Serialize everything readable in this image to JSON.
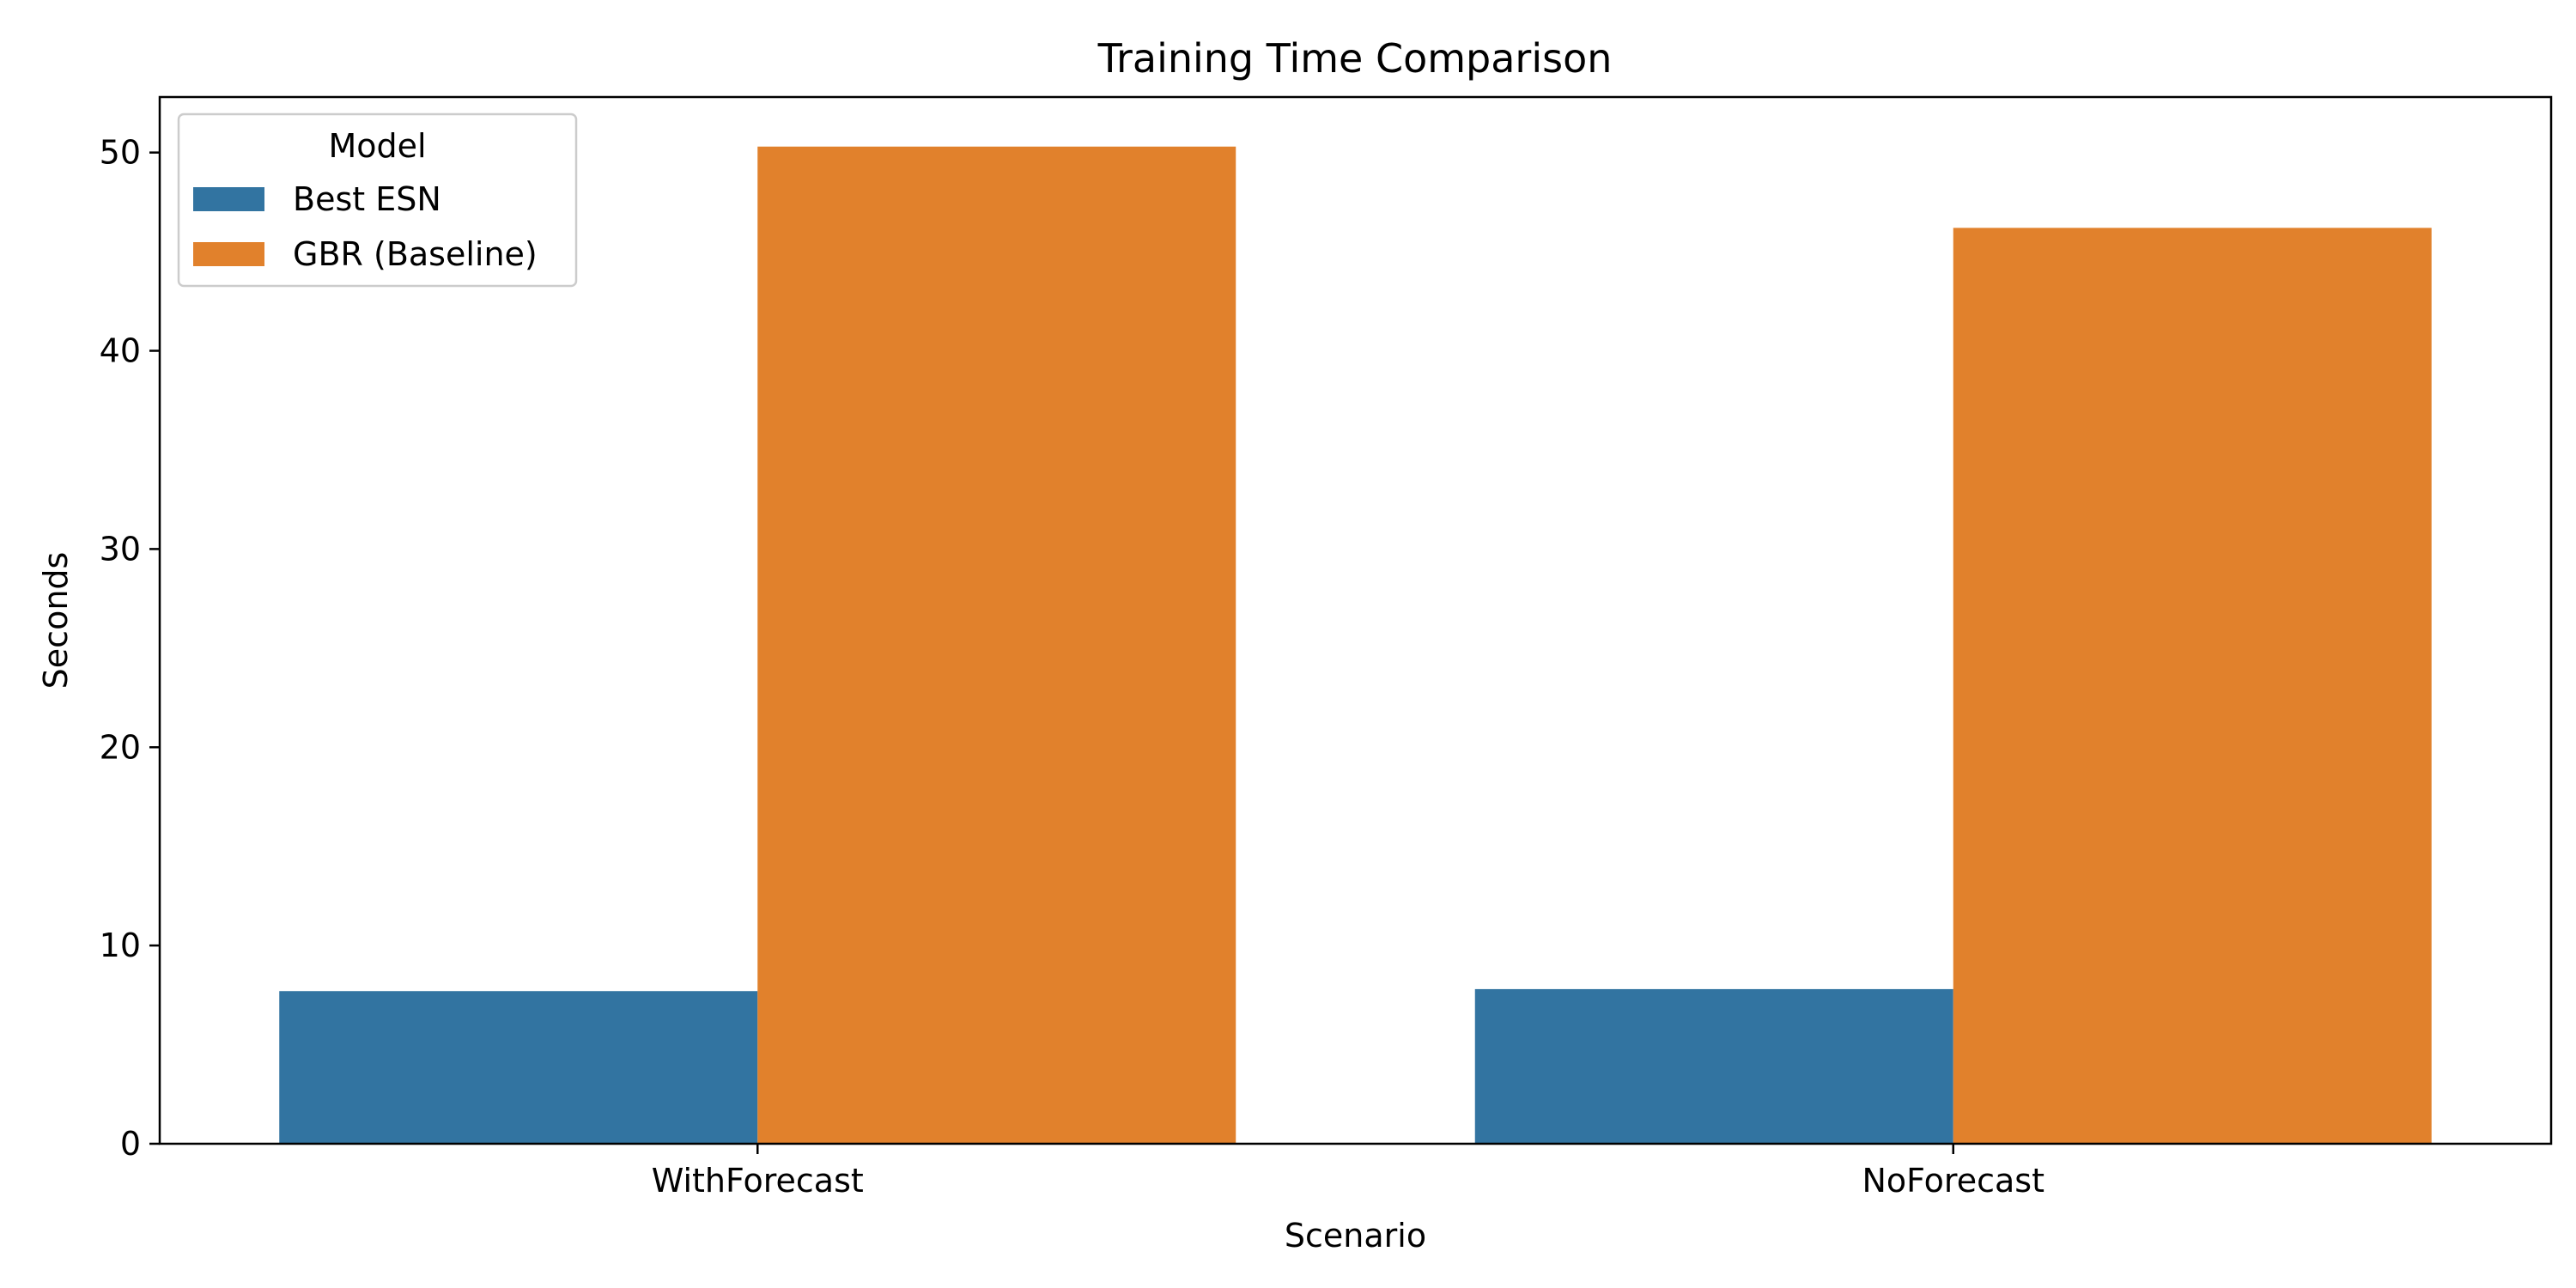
{
  "chart_data": {
    "type": "bar",
    "title": "Training Time Comparison",
    "xlabel": "Scenario",
    "ylabel": "Seconds",
    "categories": [
      "WithForecast",
      "NoForecast"
    ],
    "series": [
      {
        "name": "Best ESN",
        "values": [
          7.7,
          7.8
        ],
        "color": "#3274a1"
      },
      {
        "name": "GBR (Baseline)",
        "values": [
          50.3,
          46.2
        ],
        "color": "#e1812c"
      }
    ],
    "ylim": [
      0,
      52.8
    ],
    "yticks": [
      0,
      10,
      20,
      30,
      40,
      50
    ],
    "grid": false,
    "legend": {
      "title": "Model",
      "position": "top-left"
    }
  }
}
